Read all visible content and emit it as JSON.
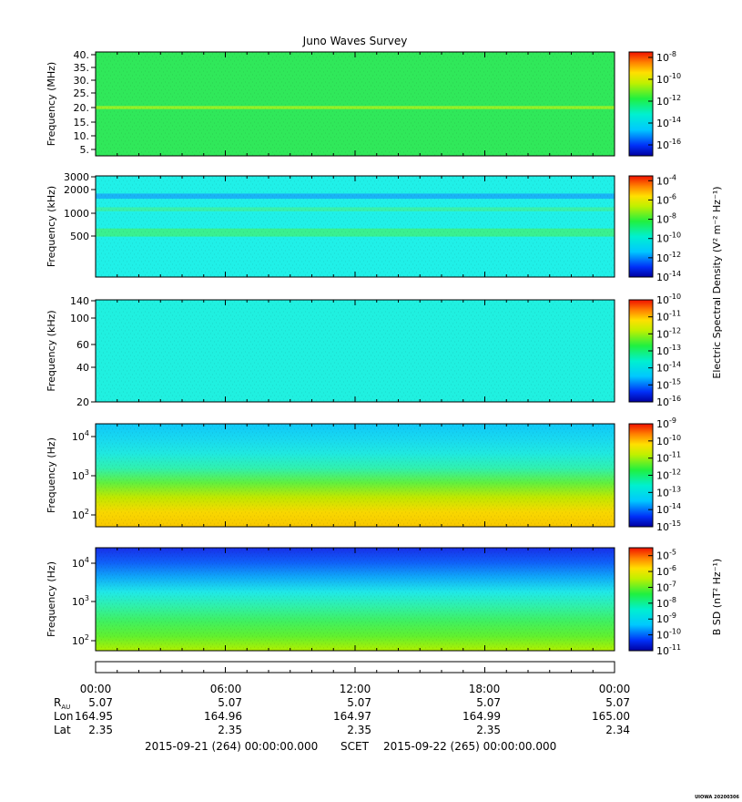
{
  "title": "Juno Waves Survey",
  "footer": {
    "start": "2015-09-21 (264) 00:00:00.000",
    "mode": "SCET",
    "end": "2015-09-22 (265) 00:00:00.000",
    "credit": "UIOWA 20200306"
  },
  "colorbar_labels": {
    "electric": "Electric Spectral Density (V² m⁻² Hz⁻¹)",
    "magnetic": "B SD (nT² Hz⁻¹)"
  },
  "time_axis": {
    "ticks": [
      "00:00",
      "06:00",
      "12:00",
      "18:00",
      "00:00"
    ],
    "ephemeris": [
      {
        "label": "R_AU",
        "values": [
          "5.07",
          "5.07",
          "5.07",
          "5.07",
          "5.07"
        ]
      },
      {
        "label": "Lon",
        "values": [
          "164.95",
          "164.96",
          "164.97",
          "164.99",
          "165.00"
        ]
      },
      {
        "label": "Lat",
        "values": [
          "2.35",
          "2.35",
          "2.35",
          "2.35",
          "2.34"
        ]
      }
    ]
  },
  "chart_data": [
    {
      "type": "heatmap",
      "ylabel": "Frequency (MHz)",
      "yticks": [
        "40.",
        "35.",
        "30.",
        "25.",
        "20.",
        "15.",
        "10.",
        "5."
      ],
      "xlim": [
        "2015-09-21 00:00",
        "2015-09-22 00:00"
      ],
      "colorbar": {
        "scale": "log",
        "range": [
          -17,
          -7.5
        ],
        "ticks": [
          "-8",
          "-10",
          "-12",
          "-14",
          "-16"
        ]
      },
      "bands_rel": [
        {
          "pos": 0.535,
          "width": 0.03,
          "color": "#a8f020"
        }
      ],
      "base_colors": [
        "#30e85a",
        "#20ec60"
      ]
    },
    {
      "type": "heatmap",
      "ylabel": "Frequency (kHz)",
      "yticks": [
        "3000",
        "2000",
        "1000",
        "500"
      ],
      "xlim": [
        "2015-09-21 00:00",
        "2015-09-22 00:00"
      ],
      "colorbar": {
        "scale": "log",
        "range": [
          -14,
          -3.5
        ],
        "ticks": [
          "-4",
          "-6",
          "-8",
          "-10",
          "-12",
          "-14"
        ]
      },
      "bands_rel": [
        {
          "pos": 0.2,
          "width": 0.05,
          "color": "#1aa8f8"
        },
        {
          "pos": 0.33,
          "width": 0.04,
          "color": "#40f0a0"
        },
        {
          "pos": 0.56,
          "width": 0.08,
          "color": "#40f080"
        }
      ],
      "base_colors": [
        "#20f0e8",
        "#18e8f0"
      ]
    },
    {
      "type": "heatmap",
      "ylabel": "Frequency (kHz)",
      "yticks": [
        "140",
        "100",
        "60",
        "40",
        "20"
      ],
      "xlim": [
        "2015-09-21 00:00",
        "2015-09-22 00:00"
      ],
      "colorbar": {
        "scale": "log",
        "range": [
          -16,
          -10
        ],
        "ticks": [
          "-10",
          "-11",
          "-12",
          "-13",
          "-14",
          "-15",
          "-16"
        ]
      },
      "bands_rel": [],
      "base_colors": [
        "#20f0e0",
        "#28ecdc"
      ]
    },
    {
      "type": "heatmap",
      "ylabel": "Frequency (Hz)",
      "yticks": [
        "10^4",
        "10^3",
        "10^2"
      ],
      "xlim": [
        "2015-09-21 00:00",
        "2015-09-22 00:00"
      ],
      "colorbar": {
        "scale": "log",
        "range": [
          -15,
          -9
        ],
        "ticks": [
          "-9",
          "-10",
          "-11",
          "-12",
          "-13",
          "-14",
          "-15"
        ]
      },
      "bands_rel": [],
      "gradient": [
        "#10c8f8",
        "#18d8f0",
        "#20e8e0",
        "#30f0b0",
        "#60f040",
        "#c0e800",
        "#f8d800",
        "#f8c800"
      ],
      "base_colors": []
    },
    {
      "type": "heatmap",
      "ylabel": "Frequency (Hz)",
      "yticks": [
        "10^4",
        "10^3",
        "10^2"
      ],
      "xlim": [
        "2015-09-21 00:00",
        "2015-09-22 00:00"
      ],
      "colorbar": {
        "scale": "log",
        "range": [
          -11,
          -4.5
        ],
        "ticks": [
          "-5",
          "-6",
          "-7",
          "-8",
          "-9",
          "-10",
          "-11"
        ]
      },
      "bands_rel": [],
      "gradient": [
        "#1830e8",
        "#1060f8",
        "#10a8f8",
        "#20e8e8",
        "#30f0a8",
        "#40f060",
        "#60f030",
        "#b0f000"
      ],
      "base_colors": []
    }
  ]
}
